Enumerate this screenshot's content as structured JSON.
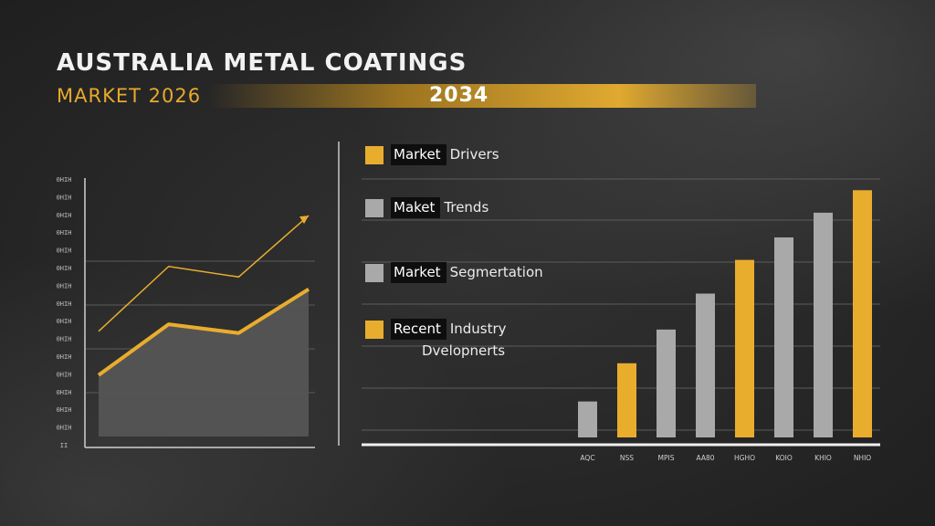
{
  "header": {
    "title": "AUSTRALIA METAL COATINGS",
    "subtitle": "MARKET 2026",
    "end_year": "2034"
  },
  "legend": [
    {
      "key": "Market",
      "rest": "Drivers",
      "color": "gold"
    },
    {
      "key": "Maket",
      "rest": "Trends",
      "color": "gray"
    },
    {
      "key": "Market",
      "rest": "Segmertation",
      "color": "gray"
    },
    {
      "key": "Recent",
      "rest": "Industry",
      "rest2": "Dvelopnerts",
      "color": "gold"
    }
  ],
  "chart_data": [
    {
      "type": "area",
      "title": "",
      "y_tick_labels": [
        "0HIH",
        "0HIH",
        "0HIH",
        "0HIH",
        "0HIH",
        "0HIH",
        "0HIH",
        "0HIH",
        "0HIH",
        "0HIH",
        "0HIH",
        "0HIH",
        "0HIH",
        "0HIH",
        "0HIH",
        "II"
      ],
      "x": [
        0,
        1,
        2,
        3
      ],
      "series": [
        {
          "name": "area",
          "values": [
            3.5,
            6.4,
            5.9,
            8.4
          ]
        },
        {
          "name": "trend",
          "values": [
            6.0,
            9.7,
            9.1,
            12.6
          ]
        }
      ],
      "ylim": [
        0,
        15
      ],
      "colors": {
        "line": "#e9ad2e",
        "fill": "#555555",
        "axis": "#d0d0d0"
      }
    },
    {
      "type": "bar",
      "categories": [
        "AQC",
        "NSS",
        "MPIS",
        "AA80",
        "HGHO",
        "KOIO",
        "KHIO",
        "NHIO"
      ],
      "values": [
        1.6,
        3.3,
        4.8,
        6.4,
        7.9,
        8.9,
        10.0,
        11.0
      ],
      "bar_colors": [
        "#a9a9a9",
        "#e9ad2e",
        "#a9a9a9",
        "#a9a9a9",
        "#e9ad2e",
        "#a9a9a9",
        "#a9a9a9",
        "#e9ad2e"
      ],
      "ylim": [
        0,
        11.5
      ],
      "grid": true
    }
  ],
  "colors": {
    "accent": "#e9ad2e",
    "gray": "#a9a9a9",
    "background": "#2a2a2a"
  }
}
